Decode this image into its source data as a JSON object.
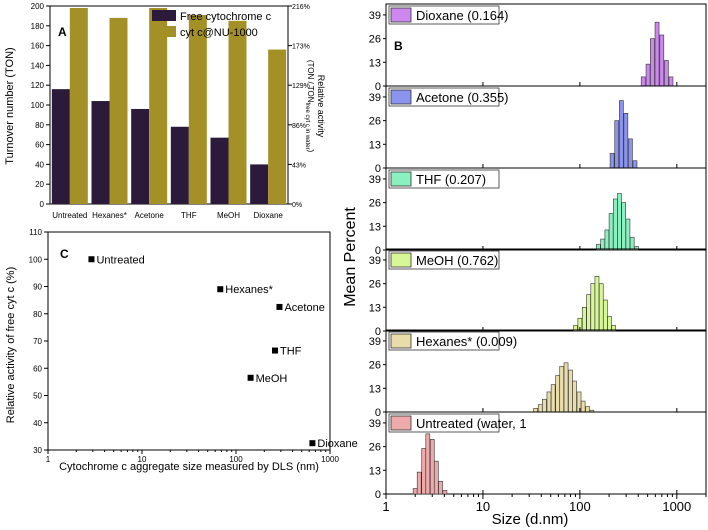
{
  "colors": {
    "free": "#2b1a3a",
    "mof": "#a39127",
    "dioxane": "#cc88ee",
    "acetone": "#8a93ee",
    "thf": "#8af0c0",
    "meoh": "#d8f898",
    "hexanes": "#e8dcab",
    "untreated": "#eeaaaa"
  },
  "panels": {
    "a_label": "A",
    "b_label": "B",
    "c_label": "C"
  },
  "chart_data": [
    {
      "type": "bar",
      "panel": "A",
      "categories": [
        "Untreated",
        "Hexanes*",
        "Acetone",
        "THF",
        "MeOH",
        "Dioxane"
      ],
      "series": [
        {
          "name": "Free cytochrome c",
          "values": [
            116,
            104,
            96,
            78,
            67,
            40
          ]
        },
        {
          "name": "cyt c@NU-1000",
          "values": [
            198,
            188,
            198,
            191,
            185,
            156
          ]
        }
      ],
      "ylabel": "Turnover number (TON)",
      "ylim": [
        0,
        200
      ],
      "yticks": [
        "0",
        "20",
        "40",
        "60",
        "80",
        "100",
        "120",
        "140",
        "160",
        "180",
        "200"
      ],
      "y2label": "Relative activity",
      "y2label_sub": "(TON / TON",
      "y2label_subscript": "free cyt c in water",
      "y2label_close": ")",
      "y2ticks": [
        "0%",
        "43%",
        "86%",
        "129%",
        "173%",
        "216%"
      ],
      "legend_position": "top-right"
    },
    {
      "type": "scatter",
      "panel": "C",
      "xscale": "log",
      "xlim": [
        1,
        1000
      ],
      "ylim": [
        30,
        110
      ],
      "xticks": [
        "1",
        "10",
        "100",
        "1000"
      ],
      "yticks": [
        "30",
        "40",
        "50",
        "60",
        "70",
        "80",
        "90",
        "100",
        "110"
      ],
      "xlabel": "Cytochrome c aggregate size measured by DLS (nm)",
      "ylabel": "Relative activity of free cyt c (%)",
      "points": [
        {
          "label": "Untreated",
          "x": 2.9,
          "y": 100
        },
        {
          "label": "Hexanes*",
          "x": 68,
          "y": 89
        },
        {
          "label": "Acetone",
          "x": 290,
          "y": 82.5
        },
        {
          "label": "THF",
          "x": 260,
          "y": 66.5
        },
        {
          "label": "MeOH",
          "x": 143,
          "y": 56.5
        },
        {
          "label": "Dioxane",
          "x": 650,
          "y": 32.5
        }
      ]
    },
    {
      "type": "bar",
      "panel": "B",
      "subtype": "histogram-stack",
      "xscale": "log",
      "xlim": [
        1,
        2000
      ],
      "xticks": [
        "1",
        "10",
        "100",
        "1000"
      ],
      "yticks": [
        "0",
        "13",
        "26",
        "39"
      ],
      "ylim": [
        0,
        45
      ],
      "xlabel": "Size (d.nm)",
      "ylabel": "Mean Percent",
      "series": [
        {
          "name": "Dioxane (0.164)",
          "color_key": "dioxane",
          "x": [
            450,
            505,
            560,
            625,
            700,
            780,
            870
          ],
          "values": [
            5,
            12,
            26,
            35,
            28,
            14,
            5
          ]
        },
        {
          "name": "Acetone (0.355)",
          "color_key": "acetone",
          "x": [
            215,
            240,
            268,
            298,
            332,
            370
          ],
          "values": [
            8,
            26,
            37,
            30,
            16,
            4
          ]
        },
        {
          "name": "THF (0.207)",
          "color_key": "thf",
          "x": [
            155,
            172,
            190,
            210,
            232,
            256,
            283,
            313,
            346,
            382
          ],
          "values": [
            3,
            6,
            11,
            20,
            28,
            31,
            26,
            17,
            7,
            2
          ]
        },
        {
          "name": "MeOH (0.762)",
          "color_key": "meoh",
          "x": [
            90,
            100,
            111,
            123,
            136,
            150,
            166,
            183,
            202,
            223
          ],
          "values": [
            3,
            7,
            13,
            20,
            26,
            30,
            26,
            17,
            8,
            3
          ]
        },
        {
          "name": "Hexanes* (0.009)",
          "color_key": "hexanes",
          "x": [
            35,
            39,
            43,
            48,
            53,
            59,
            65,
            72,
            80,
            88,
            98,
            108,
            120,
            133
          ],
          "values": [
            2,
            4,
            7,
            11,
            15,
            20,
            25,
            27,
            23,
            17,
            11,
            6,
            3,
            1
          ]
        },
        {
          "name": "Untreated (water, 1",
          "color_key": "untreated",
          "x": [
            2.0,
            2.2,
            2.45,
            2.7,
            3.0,
            3.3,
            3.65,
            4.05
          ],
          "values": [
            3,
            12,
            25,
            33,
            30,
            18,
            7,
            2
          ]
        }
      ]
    }
  ]
}
